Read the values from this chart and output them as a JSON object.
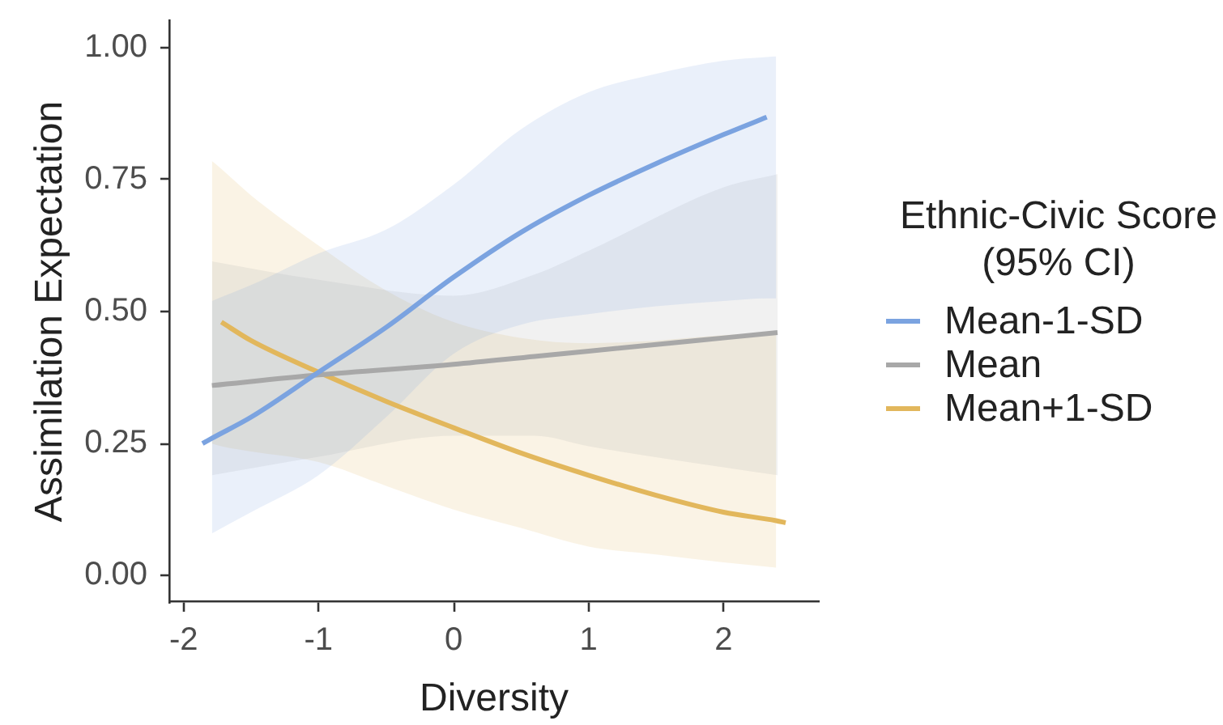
{
  "chart_data": {
    "type": "line",
    "xlabel": "Diversity",
    "ylabel": "Assimilation Expectation",
    "legend_title": "Ethnic-Civic Score (95% CI)",
    "legend": "right",
    "xlim": [
      -2.1,
      2.7
    ],
    "xticks": [
      -2,
      -1,
      0,
      1,
      2
    ],
    "ylim": [
      -0.05,
      1.05
    ],
    "yticks": [
      {
        "value": 0,
        "label": "0.00"
      },
      0.25,
      {
        "value": 0.5,
        "label": "0.50"
      },
      0.75,
      {
        "value": 1,
        "label": "1.00"
      }
    ],
    "series": [
      {
        "name": "Mean-1-SD",
        "color": "#7ba3e0",
        "x": [
          -1.86,
          -1.79,
          -1.5,
          -1,
          -0.5,
          0,
          0.5,
          1,
          1.5,
          2,
          2.32,
          2.39
        ],
        "values": [
          0.25,
          0.26,
          0.3,
          0.385,
          0.47,
          0.565,
          0.65,
          0.72,
          0.78,
          0.835,
          0.868,
          null
        ],
        "lower": [
          null,
          0.08,
          0.12,
          0.19,
          0.3,
          0.42,
          0.475,
          0.495,
          0.51,
          0.52,
          0.525,
          0.525
        ],
        "upper": [
          null,
          0.52,
          0.55,
          0.61,
          0.655,
          0.74,
          0.845,
          0.915,
          0.95,
          0.975,
          0.982,
          0.983
        ]
      },
      {
        "name": "Mean",
        "color": "#a8a8a8",
        "x": [
          -1.79,
          -1,
          0,
          0.6,
          1,
          2,
          2.4
        ],
        "values": [
          0.36,
          0.38,
          0.4,
          0.415,
          0.425,
          0.45,
          0.46
        ],
        "lower": [
          0.19,
          0.225,
          0.265,
          0.265,
          0.245,
          0.205,
          0.19
        ],
        "upper": [
          0.595,
          0.56,
          0.53,
          0.57,
          0.615,
          0.735,
          0.76
        ]
      },
      {
        "name": "Mean+1-SD",
        "color": "#e2b75c",
        "x": [
          -1.79,
          -1.72,
          -1.5,
          -1,
          -0.5,
          0,
          0.5,
          1,
          1.5,
          2,
          2.39,
          2.46
        ],
        "values": [
          null,
          0.48,
          0.445,
          0.385,
          0.33,
          0.28,
          0.232,
          0.19,
          0.152,
          0.12,
          0.104,
          0.1
        ],
        "lower": [
          0.25,
          0.245,
          0.235,
          0.215,
          0.17,
          0.125,
          0.09,
          0.055,
          0.04,
          0.025,
          0.015,
          null
        ],
        "upper": [
          0.785,
          0.77,
          0.72,
          0.625,
          0.54,
          0.48,
          0.45,
          0.44,
          0.445,
          0.455,
          0.46,
          null
        ]
      }
    ]
  }
}
